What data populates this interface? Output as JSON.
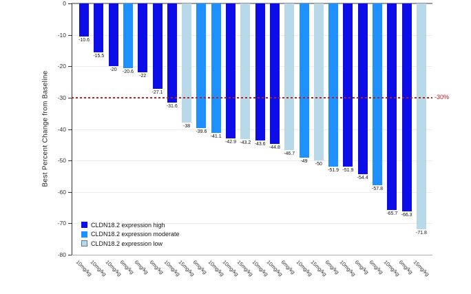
{
  "chart_data": {
    "type": "bar",
    "subtype": "waterfall",
    "title": "",
    "ylabel": "Best Percent Change from Baseline",
    "xlabel": "",
    "ylim": [
      -80,
      0
    ],
    "yticks": [
      0,
      -10,
      -20,
      -30,
      -40,
      -50,
      -60,
      -70,
      -80
    ],
    "grid": "horizontal",
    "categories": [
      "10mg/kg",
      "10mg/kg",
      "10mg/kg",
      "6mg/kg",
      "6mg/kg",
      "6mg/kg",
      "10mg/kg",
      "15mg/kg",
      "6mg/kg",
      "10mg/kg",
      "10mg/kg",
      "15mg/kg",
      "10mg/kg",
      "10mg/kg",
      "6mg/kg",
      "10mg/kg",
      "15mg/kg",
      "6mg/kg",
      "10mg/kg",
      "6mg/kg",
      "6mg/kg",
      "10mg/kg",
      "6mg/kg",
      "15mg/kg"
    ],
    "values": [
      -10.6,
      -15.5,
      -20,
      -20.6,
      -22,
      -27.1,
      -31.6,
      -38,
      -39.6,
      -41.1,
      -42.9,
      -43.2,
      -43.6,
      -44.8,
      -46.7,
      -49,
      -50,
      -51.9,
      -51.9,
      -54.4,
      -57.8,
      -65.7,
      -66.3,
      -71.8
    ],
    "groups": [
      "high",
      "high",
      "high",
      "moderate",
      "high",
      "high",
      "high",
      "low",
      "moderate",
      "moderate",
      "high",
      "low",
      "high",
      "high",
      "low",
      "moderate",
      "low",
      "moderate",
      "high",
      "high",
      "moderate",
      "high",
      "high",
      "low"
    ],
    "colors": {
      "high": "#0d0de8",
      "moderate": "#1e90ff",
      "low": "#b9d9e8",
      "low_border": "#5a7a8a",
      "reference": "#b22222",
      "grid": "#ececec",
      "zero_line": "#999999",
      "bottom_spine": "#b0b0b0",
      "axis": "#333333"
    },
    "reference_line": {
      "y": -30,
      "label": "-30%",
      "style": "dashed"
    },
    "legend": [
      {
        "key": "high",
        "label": "CLDN18.2 expression high"
      },
      {
        "key": "moderate",
        "label": "CLDN18.2 expression moderate"
      },
      {
        "key": "low",
        "label": "CLDN18.2 expression low"
      }
    ],
    "legend_position": "lower left"
  }
}
